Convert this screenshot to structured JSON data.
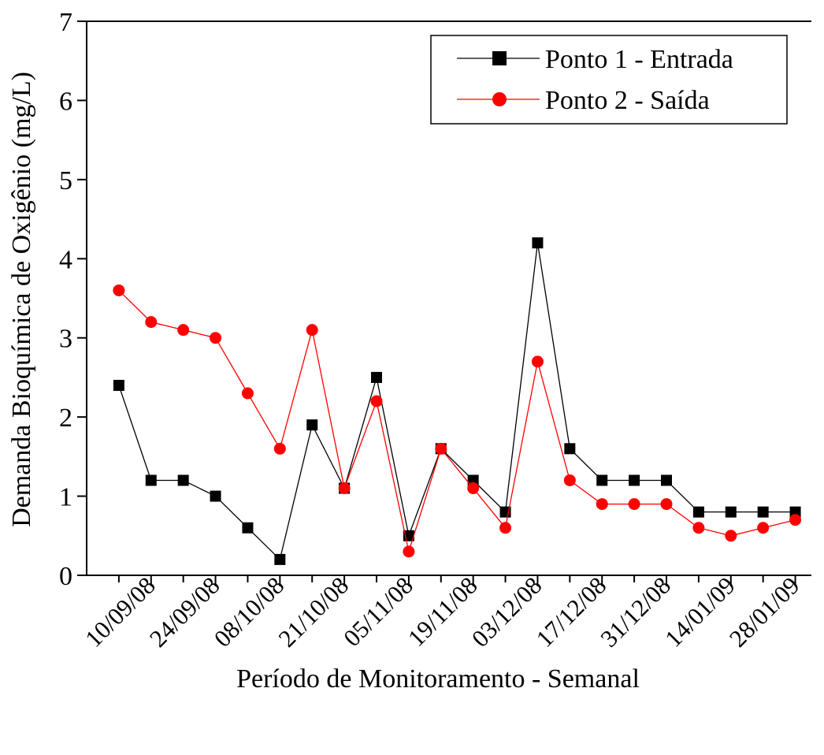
{
  "chart_data": {
    "type": "line",
    "title": "",
    "xlabel": "Período de Monitoramento - Semanal",
    "ylabel": "Demanda Bioquímica de Oxigênio (mg/L)",
    "ylim": [
      0,
      7
    ],
    "yticks": [
      0,
      1,
      2,
      3,
      4,
      5,
      6,
      7
    ],
    "x_tick_labels": [
      "10/09/08",
      "24/09/08",
      "08/10/08",
      "21/10/08",
      "05/11/08",
      "19/11/08",
      "03/12/08",
      "17/12/08",
      "31/12/08",
      "14/01/09",
      "28/01/09"
    ],
    "x_tick_label_positions": [
      2,
      4,
      6,
      8,
      10,
      12,
      14,
      16,
      18,
      20,
      22
    ],
    "x_points": [
      1,
      2,
      3,
      4,
      5,
      6,
      7,
      8,
      9,
      10,
      11,
      12,
      13,
      14,
      15,
      16,
      17,
      18,
      19,
      20,
      21,
      22
    ],
    "xlim": [
      0,
      22.5
    ],
    "grid": false,
    "legend_position": "top-right",
    "series": [
      {
        "name": "Ponto 1 - Entrada",
        "color": "#000000",
        "marker": "square",
        "values": [
          2.4,
          1.2,
          1.2,
          1.0,
          0.6,
          0.2,
          1.9,
          1.1,
          2.5,
          0.5,
          1.6,
          1.2,
          0.8,
          4.2,
          1.6,
          1.2,
          1.2,
          1.2,
          0.8,
          0.8,
          0.8,
          0.8
        ]
      },
      {
        "name": "Ponto 2 - Saída",
        "color": "#ff0000",
        "marker": "circle",
        "values": [
          3.6,
          3.2,
          3.1,
          3.0,
          2.3,
          1.6,
          3.1,
          1.1,
          2.2,
          0.3,
          1.6,
          1.1,
          0.6,
          2.7,
          1.2,
          0.9,
          0.9,
          0.9,
          0.6,
          0.5,
          0.6,
          0.7
        ]
      }
    ]
  }
}
